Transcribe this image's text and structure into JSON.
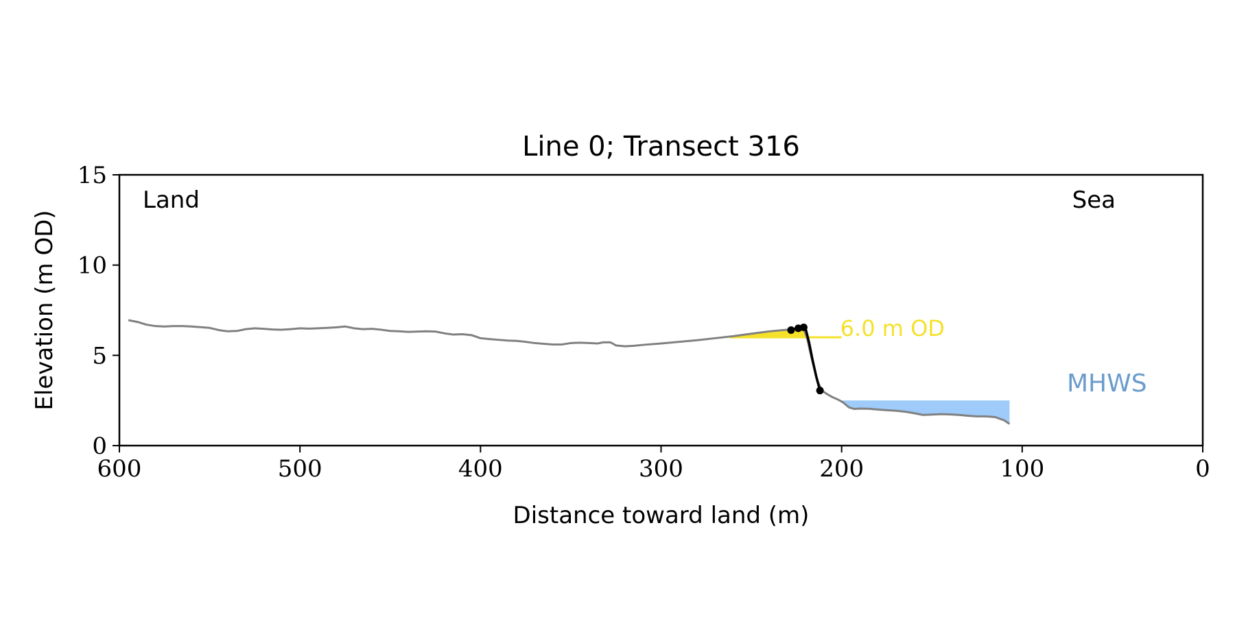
{
  "chart_data": {
    "type": "line",
    "title": "Line 0; Transect 316",
    "xlabel": "Distance toward land (m)",
    "ylabel": "Elevation (m OD)",
    "xlim": [
      600,
      0
    ],
    "ylim": [
      0,
      15
    ],
    "x_ticks": [
      600,
      500,
      400,
      300,
      200,
      100,
      0
    ],
    "y_ticks": [
      0,
      5,
      10,
      15
    ],
    "grid": false,
    "corner_labels": {
      "left": "Land",
      "right": "Sea"
    },
    "profile": {
      "color": "#808080",
      "x": [
        595,
        590,
        585,
        580,
        575,
        570,
        565,
        560,
        555,
        550,
        545,
        540,
        535,
        530,
        525,
        520,
        515,
        510,
        505,
        500,
        495,
        490,
        485,
        480,
        475,
        470,
        465,
        460,
        455,
        450,
        445,
        440,
        435,
        430,
        425,
        420,
        415,
        410,
        405,
        400,
        395,
        390,
        385,
        380,
        375,
        370,
        365,
        360,
        355,
        350,
        345,
        340,
        335,
        332,
        328,
        325,
        320,
        315,
        310,
        300,
        290,
        280,
        270,
        260,
        250,
        240,
        230,
        227,
        224,
        221,
        219,
        217,
        215,
        213,
        211,
        208,
        205,
        202,
        199,
        196,
        193,
        190,
        185,
        180,
        175,
        170,
        165,
        160,
        155,
        150,
        145,
        140,
        135,
        130,
        125,
        120,
        115,
        110,
        107
      ],
      "y": [
        6.95,
        6.85,
        6.7,
        6.62,
        6.6,
        6.62,
        6.62,
        6.6,
        6.56,
        6.52,
        6.4,
        6.33,
        6.35,
        6.45,
        6.5,
        6.47,
        6.43,
        6.42,
        6.45,
        6.5,
        6.48,
        6.5,
        6.52,
        6.55,
        6.6,
        6.5,
        6.45,
        6.47,
        6.42,
        6.35,
        6.33,
        6.3,
        6.32,
        6.33,
        6.32,
        6.22,
        6.15,
        6.17,
        6.12,
        5.95,
        5.9,
        5.86,
        5.82,
        5.8,
        5.75,
        5.68,
        5.64,
        5.6,
        5.6,
        5.68,
        5.7,
        5.68,
        5.66,
        5.72,
        5.72,
        5.55,
        5.5,
        5.53,
        5.58,
        5.66,
        5.75,
        5.84,
        5.95,
        6.06,
        6.2,
        6.33,
        6.42,
        6.45,
        6.5,
        6.5,
        5.9,
        5.0,
        4.2,
        3.5,
        3.05,
        2.85,
        2.68,
        2.55,
        2.38,
        2.12,
        2.03,
        2.05,
        2.04,
        2.0,
        1.96,
        1.93,
        1.88,
        1.8,
        1.7,
        1.72,
        1.74,
        1.73,
        1.7,
        1.65,
        1.62,
        1.62,
        1.58,
        1.4,
        1.2
      ]
    },
    "cliff_line": {
      "color": "#000000",
      "x": [
        228,
        225,
        222,
        220,
        218,
        216,
        214,
        212
      ],
      "y": [
        6.4,
        6.5,
        6.55,
        6.5,
        5.7,
        4.7,
        3.8,
        3.05
      ]
    },
    "cliff_points": {
      "color": "#000000",
      "x": [
        228,
        224,
        221,
        212
      ],
      "y": [
        6.4,
        6.5,
        6.55,
        3.05
      ]
    },
    "od_level": {
      "value": 6.0,
      "label": "6.0 m OD",
      "color": "#f5e12a",
      "x_from": 262,
      "x_to": 200
    },
    "mhws": {
      "label": "MHWS",
      "color": "#9ecbfa",
      "label_color": "#6a9ccc",
      "level": 2.5,
      "x_from": 200,
      "x_to": 107
    },
    "cliff_fill_color": "#cccccc"
  }
}
